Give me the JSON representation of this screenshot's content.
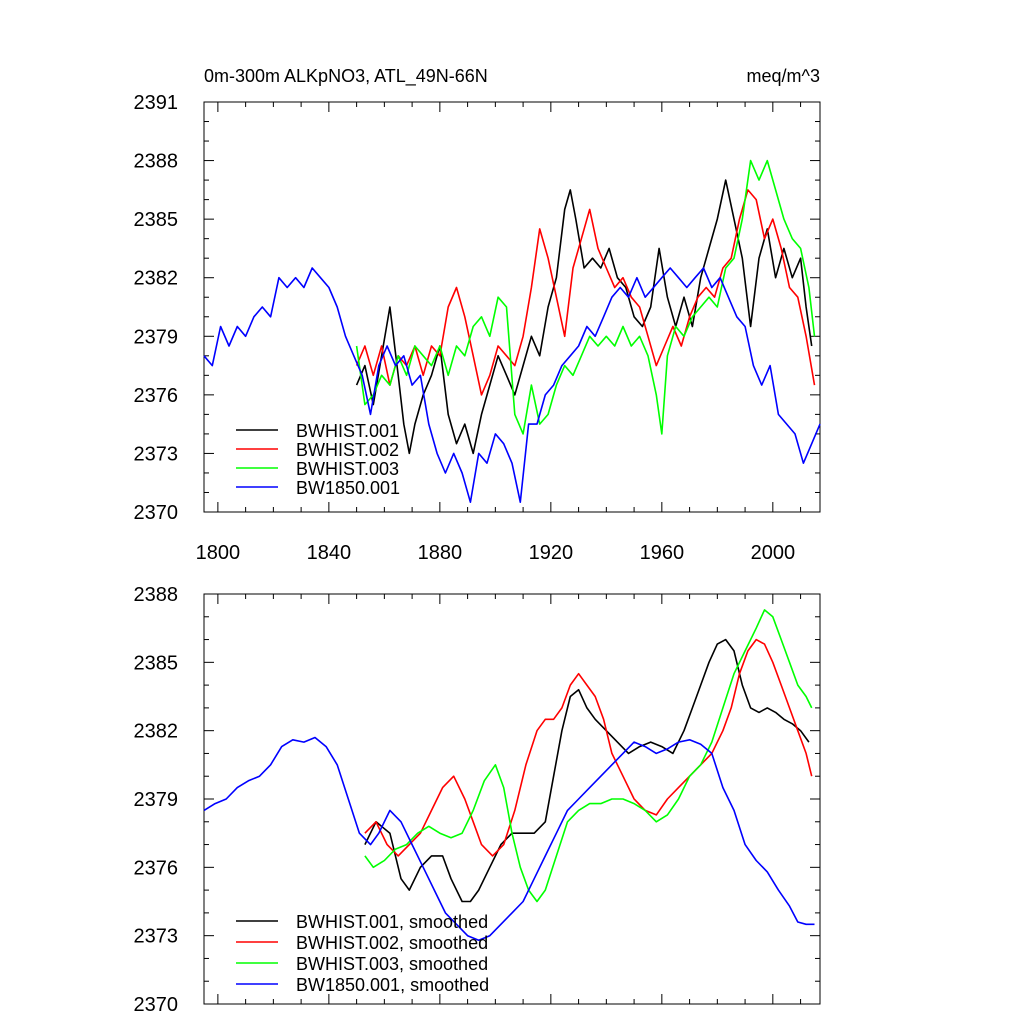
{
  "chart_data": [
    {
      "type": "line",
      "title_left": "0m-300m ALKpNO3, ATL_49N-66N",
      "title_right": "meq/m^3",
      "xlim": [
        1795,
        2017
      ],
      "ylim": [
        2370,
        2391
      ],
      "xticks": [
        1800,
        1840,
        1880,
        1920,
        1960,
        2000
      ],
      "xtick_labels": [
        "1800",
        "1840",
        "1880",
        "1920",
        "1960",
        "2000"
      ],
      "yticks": [
        2370,
        2373,
        2376,
        2379,
        2382,
        2385,
        2388,
        2391
      ],
      "ytick_labels": [
        "2370",
        "2373",
        "2376",
        "2379",
        "2382",
        "2385",
        "2388",
        "2391"
      ],
      "legend_position": "bottom-left",
      "series": [
        {
          "name": "BWHIST.001",
          "color": "#000000",
          "x": [
            1850,
            1853,
            1856,
            1859,
            1862,
            1865,
            1867,
            1869,
            1871,
            1874,
            1877,
            1880,
            1883,
            1886,
            1889,
            1892,
            1895,
            1898,
            1901,
            1904,
            1907,
            1910,
            1913,
            1916,
            1919,
            1922,
            1925,
            1927,
            1929,
            1932,
            1935,
            1938,
            1941,
            1944,
            1947,
            1950,
            1953,
            1956,
            1959,
            1962,
            1965,
            1968,
            1971,
            1974,
            1977,
            1980,
            1983,
            1986,
            1989,
            1992,
            1995,
            1998,
            2001,
            2004,
            2007,
            2010,
            2012,
            2014
          ],
          "values": [
            2376.5,
            2377.5,
            2375.5,
            2378.0,
            2380.5,
            2377.0,
            2374.5,
            2373.0,
            2374.5,
            2376.0,
            2377.0,
            2378.5,
            2375.0,
            2373.5,
            2374.5,
            2373.0,
            2375.0,
            2376.5,
            2378.0,
            2377.0,
            2376.0,
            2377.5,
            2379.0,
            2378.0,
            2380.5,
            2382.0,
            2385.5,
            2386.5,
            2385.0,
            2382.5,
            2383.0,
            2382.5,
            2383.5,
            2382.0,
            2381.5,
            2380.0,
            2379.5,
            2380.5,
            2383.5,
            2381.0,
            2379.5,
            2381.0,
            2379.5,
            2382.0,
            2383.5,
            2385.0,
            2387.0,
            2385.0,
            2383.0,
            2379.5,
            2383.0,
            2384.5,
            2382.0,
            2383.5,
            2382.0,
            2383.0,
            2380.5,
            2378.5
          ]
        },
        {
          "name": "BWHIST.002",
          "color": "#ff0000",
          "x": [
            1850,
            1853,
            1856,
            1859,
            1862,
            1865,
            1868,
            1871,
            1874,
            1877,
            1880,
            1883,
            1886,
            1889,
            1892,
            1895,
            1898,
            1901,
            1904,
            1907,
            1910,
            1913,
            1916,
            1919,
            1922,
            1925,
            1928,
            1931,
            1934,
            1937,
            1940,
            1943,
            1946,
            1949,
            1952,
            1955,
            1958,
            1961,
            1964,
            1967,
            1970,
            1973,
            1976,
            1979,
            1982,
            1985,
            1988,
            1991,
            1994,
            1997,
            2000,
            2003,
            2006,
            2009,
            2012,
            2015
          ],
          "values": [
            2377.5,
            2378.5,
            2377.0,
            2378.5,
            2376.5,
            2378.0,
            2377.5,
            2378.5,
            2377.0,
            2378.5,
            2378.0,
            2380.5,
            2381.5,
            2380.0,
            2378.0,
            2376.0,
            2377.0,
            2378.5,
            2378.0,
            2377.5,
            2379.0,
            2381.5,
            2384.5,
            2383.0,
            2381.0,
            2379.0,
            2382.5,
            2384.0,
            2385.5,
            2383.5,
            2382.5,
            2381.5,
            2382.0,
            2381.0,
            2380.5,
            2379.0,
            2377.5,
            2378.5,
            2379.5,
            2378.5,
            2380.0,
            2381.0,
            2381.5,
            2381.0,
            2382.5,
            2383.0,
            2385.0,
            2386.5,
            2386.0,
            2384.0,
            2385.0,
            2383.5,
            2381.5,
            2381.0,
            2379.0,
            2376.5
          ]
        },
        {
          "name": "BWHIST.003",
          "color": "#00ff00",
          "x": [
            1850,
            1853,
            1856,
            1859,
            1862,
            1865,
            1868,
            1871,
            1874,
            1877,
            1880,
            1883,
            1886,
            1889,
            1892,
            1895,
            1898,
            1901,
            1904,
            1907,
            1910,
            1913,
            1916,
            1919,
            1922,
            1925,
            1928,
            1931,
            1934,
            1937,
            1940,
            1943,
            1946,
            1949,
            1952,
            1955,
            1958,
            1960,
            1962,
            1965,
            1968,
            1971,
            1974,
            1977,
            1980,
            1983,
            1986,
            1989,
            1992,
            1995,
            1998,
            2001,
            2004,
            2007,
            2010,
            2013,
            2015
          ],
          "values": [
            2378.5,
            2375.5,
            2376.0,
            2377.0,
            2376.5,
            2378.0,
            2377.0,
            2378.5,
            2378.0,
            2377.5,
            2378.5,
            2377.0,
            2378.5,
            2378.0,
            2379.5,
            2380.0,
            2379.0,
            2381.0,
            2380.5,
            2375.0,
            2374.0,
            2376.5,
            2374.5,
            2375.0,
            2376.5,
            2377.5,
            2377.0,
            2378.0,
            2379.0,
            2378.5,
            2379.0,
            2378.5,
            2379.5,
            2378.5,
            2379.0,
            2378.0,
            2376.0,
            2374.0,
            2378.0,
            2379.5,
            2379.0,
            2380.0,
            2380.5,
            2381.0,
            2380.5,
            2382.5,
            2383.0,
            2385.0,
            2388.0,
            2387.0,
            2388.0,
            2386.5,
            2385.0,
            2384.0,
            2383.5,
            2381.5,
            2379.0
          ]
        },
        {
          "name": "BW1850.001",
          "color": "#0000ff",
          "x": [
            1795,
            1798,
            1801,
            1804,
            1807,
            1810,
            1813,
            1816,
            1819,
            1822,
            1825,
            1828,
            1831,
            1834,
            1837,
            1840,
            1843,
            1846,
            1849,
            1852,
            1855,
            1858,
            1861,
            1864,
            1867,
            1870,
            1873,
            1876,
            1879,
            1882,
            1885,
            1888,
            1891,
            1894,
            1897,
            1900,
            1903,
            1906,
            1909,
            1912,
            1915,
            1918,
            1921,
            1924,
            1927,
            1930,
            1933,
            1936,
            1939,
            1942,
            1945,
            1948,
            1951,
            1954,
            1957,
            1960,
            1963,
            1966,
            1969,
            1972,
            1975,
            1978,
            1981,
            1984,
            1987,
            1990,
            1993,
            1996,
            1999,
            2002,
            2005,
            2008,
            2011,
            2014,
            2017
          ],
          "values": [
            2378.0,
            2377.5,
            2379.5,
            2378.5,
            2379.5,
            2379.0,
            2380.0,
            2380.5,
            2380.0,
            2382.0,
            2381.5,
            2382.0,
            2381.5,
            2382.5,
            2382.0,
            2381.5,
            2380.5,
            2379.0,
            2378.0,
            2377.0,
            2375.0,
            2377.5,
            2378.5,
            2377.5,
            2378.0,
            2376.5,
            2377.0,
            2374.5,
            2373.0,
            2372.0,
            2373.0,
            2372.0,
            2370.5,
            2373.0,
            2372.5,
            2374.0,
            2373.5,
            2372.5,
            2370.5,
            2374.5,
            2374.5,
            2376.0,
            2376.5,
            2377.5,
            2378.0,
            2378.5,
            2379.5,
            2379.0,
            2380.0,
            2381.0,
            2381.5,
            2381.0,
            2382.0,
            2381.0,
            2381.5,
            2382.0,
            2382.5,
            2382.0,
            2381.5,
            2382.0,
            2382.5,
            2381.5,
            2382.0,
            2381.0,
            2380.0,
            2379.5,
            2377.5,
            2376.5,
            2377.5,
            2375.0,
            2374.5,
            2374.0,
            2372.5,
            2373.5,
            2374.5
          ]
        }
      ]
    },
    {
      "type": "line",
      "xlim": [
        1795,
        2017
      ],
      "ylim": [
        2370,
        2388
      ],
      "xticks": [
        1800,
        1840,
        1880,
        1920,
        1960,
        2000
      ],
      "yticks": [
        2370,
        2373,
        2376,
        2379,
        2382,
        2385,
        2388
      ],
      "ytick_labels": [
        "2370",
        "2373",
        "2376",
        "2379",
        "2382",
        "2385",
        "2388"
      ],
      "legend_position": "bottom-left",
      "series": [
        {
          "name": "BWHIST.001, smoothed",
          "color": "#000000",
          "x": [
            1853,
            1857,
            1862,
            1866,
            1869,
            1873,
            1877,
            1881,
            1884,
            1888,
            1891,
            1894,
            1898,
            1902,
            1906,
            1910,
            1914,
            1918,
            1921,
            1924,
            1927,
            1930,
            1933,
            1936,
            1940,
            1944,
            1948,
            1952,
            1956,
            1960,
            1964,
            1968,
            1971,
            1974,
            1977,
            1980,
            1983,
            1986,
            1989,
            1992,
            1995,
            1998,
            2001,
            2004,
            2007,
            2010,
            2013
          ],
          "values": [
            2377.0,
            2378.0,
            2377.5,
            2375.5,
            2375.0,
            2376.0,
            2376.5,
            2376.5,
            2375.5,
            2374.5,
            2374.5,
            2375.0,
            2376.0,
            2377.0,
            2377.5,
            2377.5,
            2377.5,
            2378.0,
            2380.0,
            2382.0,
            2383.5,
            2383.8,
            2383.0,
            2382.5,
            2382.0,
            2381.5,
            2381.0,
            2381.3,
            2381.5,
            2381.3,
            2381.0,
            2382.0,
            2383.0,
            2384.0,
            2385.0,
            2385.8,
            2386.0,
            2385.5,
            2384.0,
            2383.0,
            2382.8,
            2383.0,
            2382.8,
            2382.5,
            2382.3,
            2382.0,
            2381.5
          ]
        },
        {
          "name": "BWHIST.002, smoothed",
          "color": "#ff0000",
          "x": [
            1853,
            1857,
            1861,
            1865,
            1869,
            1873,
            1877,
            1881,
            1885,
            1889,
            1892,
            1895,
            1899,
            1903,
            1907,
            1911,
            1915,
            1918,
            1921,
            1924,
            1927,
            1930,
            1933,
            1936,
            1939,
            1942,
            1946,
            1950,
            1954,
            1958,
            1962,
            1966,
            1970,
            1974,
            1978,
            1982,
            1985,
            1988,
            1991,
            1994,
            1997,
            2000,
            2003,
            2006,
            2009,
            2012,
            2014
          ],
          "values": [
            2377.5,
            2378.0,
            2377.0,
            2376.5,
            2377.0,
            2377.5,
            2378.5,
            2379.5,
            2380.0,
            2379.0,
            2378.0,
            2377.0,
            2376.5,
            2377.0,
            2378.5,
            2380.5,
            2382.0,
            2382.5,
            2382.5,
            2383.0,
            2384.0,
            2384.5,
            2384.0,
            2383.5,
            2382.5,
            2381.0,
            2380.0,
            2379.0,
            2378.5,
            2378.3,
            2379.0,
            2379.5,
            2380.0,
            2380.5,
            2381.0,
            2382.0,
            2383.0,
            2384.5,
            2385.5,
            2386.0,
            2385.8,
            2385.0,
            2384.0,
            2383.0,
            2382.0,
            2381.0,
            2380.0
          ]
        },
        {
          "name": "BWHIST.003, smoothed",
          "color": "#00ff00",
          "x": [
            1853,
            1856,
            1860,
            1864,
            1868,
            1872,
            1876,
            1880,
            1884,
            1888,
            1892,
            1896,
            1900,
            1903,
            1906,
            1909,
            1912,
            1915,
            1918,
            1922,
            1926,
            1930,
            1934,
            1938,
            1942,
            1946,
            1950,
            1954,
            1958,
            1962,
            1966,
            1970,
            1974,
            1978,
            1982,
            1986,
            1990,
            1994,
            1997,
            2000,
            2003,
            2006,
            2009,
            2012,
            2014
          ],
          "values": [
            2376.5,
            2376.0,
            2376.3,
            2376.8,
            2377.0,
            2377.5,
            2377.8,
            2377.5,
            2377.3,
            2377.5,
            2378.5,
            2379.8,
            2380.5,
            2379.5,
            2377.5,
            2376.0,
            2375.0,
            2374.5,
            2375.0,
            2376.5,
            2378.0,
            2378.5,
            2378.8,
            2378.8,
            2379.0,
            2379.0,
            2378.8,
            2378.5,
            2378.0,
            2378.3,
            2379.0,
            2380.0,
            2380.5,
            2381.5,
            2383.0,
            2384.5,
            2385.5,
            2386.5,
            2387.3,
            2387.0,
            2386.0,
            2385.0,
            2384.0,
            2383.5,
            2383.0
          ]
        },
        {
          "name": "BW1850.001, smoothed",
          "color": "#0000ff",
          "x": [
            1795,
            1799,
            1803,
            1807,
            1811,
            1815,
            1819,
            1823,
            1827,
            1831,
            1835,
            1839,
            1843,
            1847,
            1851,
            1855,
            1858,
            1862,
            1866,
            1870,
            1874,
            1878,
            1882,
            1886,
            1890,
            1894,
            1898,
            1902,
            1906,
            1910,
            1914,
            1918,
            1922,
            1926,
            1930,
            1934,
            1938,
            1942,
            1946,
            1950,
            1954,
            1958,
            1962,
            1966,
            1970,
            1974,
            1978,
            1982,
            1986,
            1990,
            1994,
            1998,
            2002,
            2006,
            2009,
            2012,
            2015
          ],
          "values": [
            2378.5,
            2378.8,
            2379.0,
            2379.5,
            2379.8,
            2380.0,
            2380.5,
            2381.3,
            2381.6,
            2381.5,
            2381.7,
            2381.3,
            2380.5,
            2379.0,
            2377.5,
            2377.0,
            2377.5,
            2378.5,
            2378.0,
            2377.0,
            2376.0,
            2375.0,
            2374.0,
            2373.5,
            2373.0,
            2372.8,
            2373.0,
            2373.5,
            2374.0,
            2374.5,
            2375.5,
            2376.5,
            2377.5,
            2378.5,
            2379.0,
            2379.5,
            2380.0,
            2380.5,
            2381.0,
            2381.5,
            2381.3,
            2381.0,
            2381.2,
            2381.5,
            2381.6,
            2381.4,
            2381.0,
            2379.5,
            2378.5,
            2377.0,
            2376.3,
            2375.8,
            2375.0,
            2374.3,
            2373.6,
            2373.5,
            2373.5
          ]
        }
      ]
    }
  ]
}
